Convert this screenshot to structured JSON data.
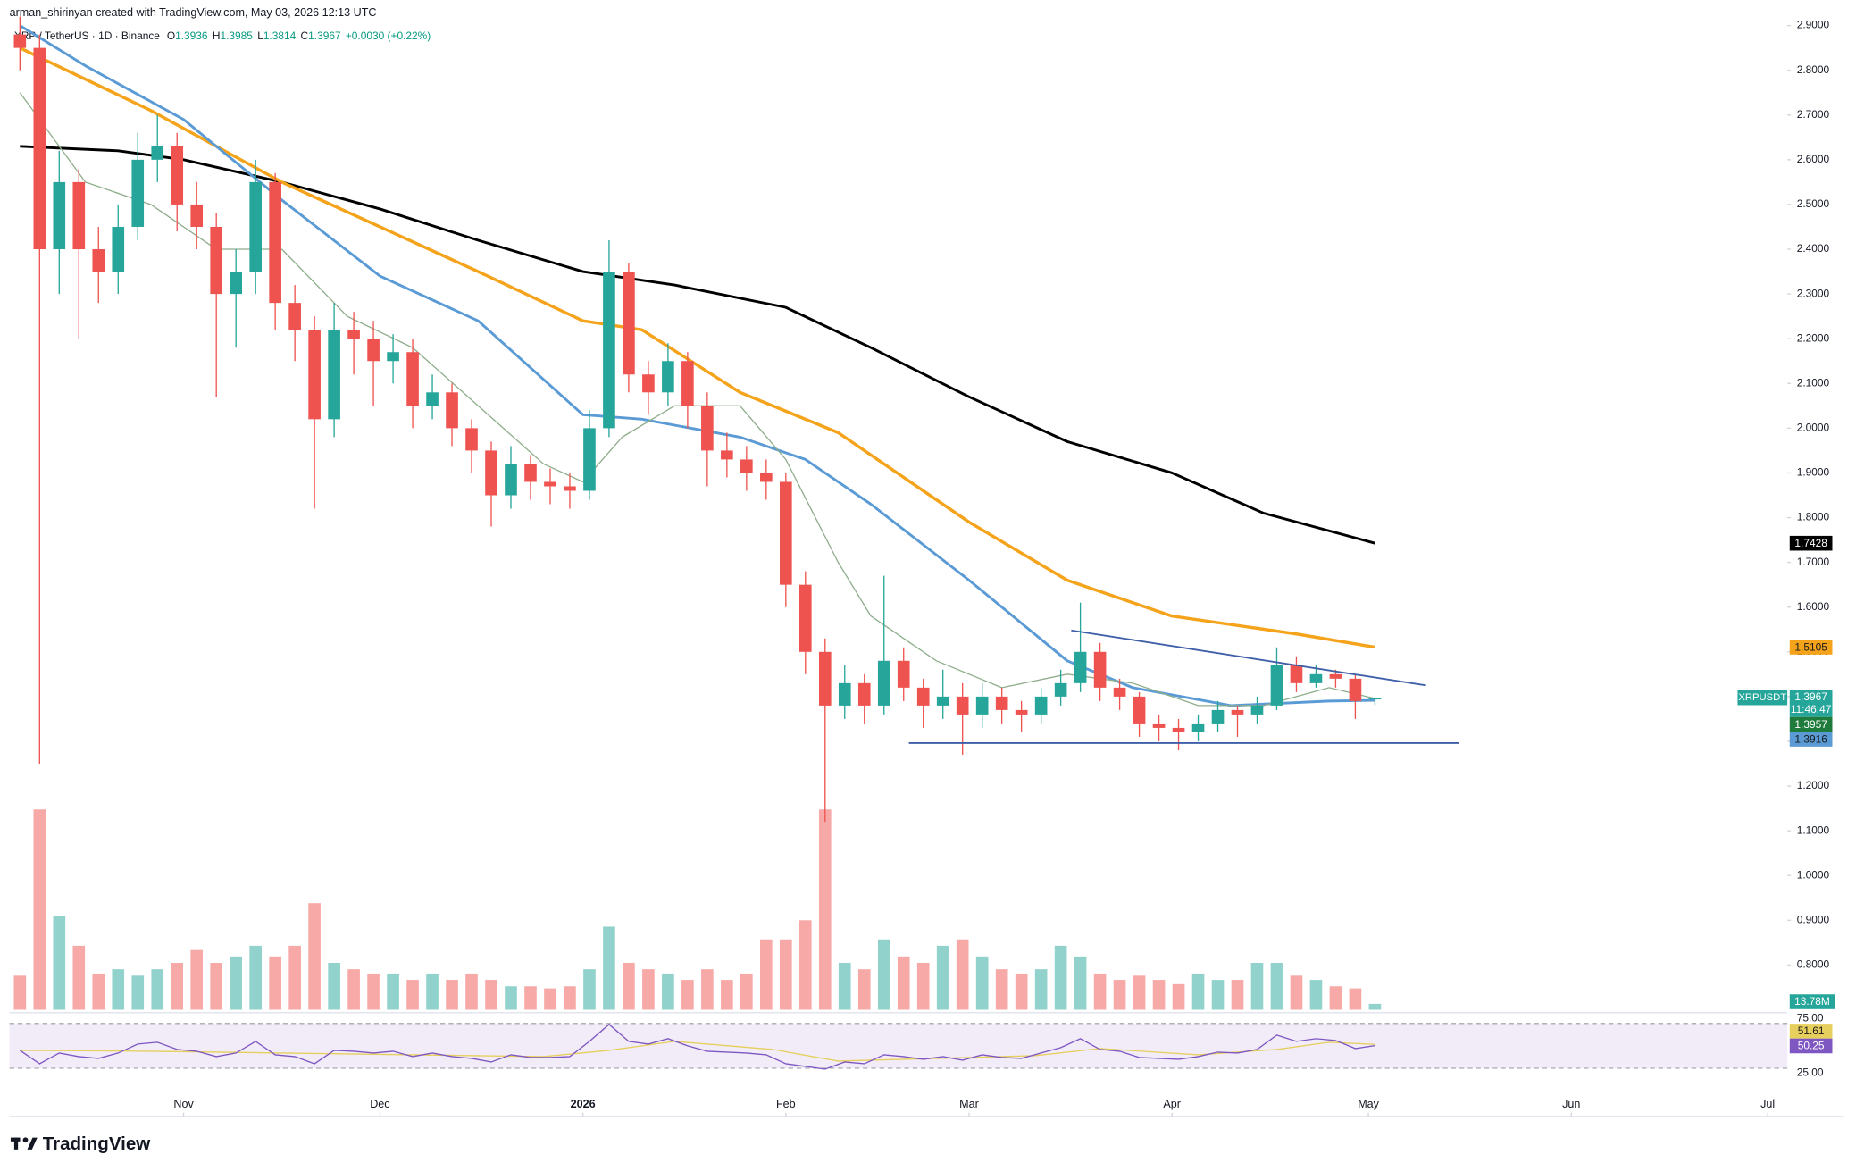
{
  "chart_data": {
    "type": "candlestick",
    "header": "arman_shirinyan created with TradingView.com, May 03, 2026 12:13 UTC",
    "symbol_line": "XRP / TetherUS · 1D · Binance",
    "legend": {
      "labels": [
        "O",
        "H",
        "L",
        "C"
      ],
      "change": "+0.0030 (+0.22%)",
      "color": "#089981"
    },
    "logo_text": "TradingView",
    "up_color": "#26a69a",
    "down_color": "#ef5350",
    "x": [
      0,
      3,
      6,
      9,
      12,
      15,
      18,
      21,
      24,
      27,
      30,
      33,
      36,
      39,
      42,
      45,
      48,
      51,
      54,
      57,
      60,
      63,
      66,
      69,
      72,
      75,
      78,
      81,
      84,
      87,
      90,
      93,
      96,
      99,
      102,
      105,
      108,
      111,
      114,
      117,
      120,
      123,
      126,
      129,
      132,
      135,
      138,
      141,
      144,
      147,
      150,
      153,
      156,
      159,
      162,
      165,
      168,
      171,
      174,
      177,
      180,
      183,
      186,
      189,
      192,
      195,
      198,
      201,
      204,
      207
    ],
    "open": [
      2.88,
      2.85,
      2.4,
      2.55,
      2.4,
      2.35,
      2.45,
      2.6,
      2.63,
      2.5,
      2.45,
      2.3,
      2.35,
      2.55,
      2.28,
      2.22,
      2.02,
      2.22,
      2.2,
      2.15,
      2.17,
      2.05,
      2.08,
      2.0,
      1.95,
      1.85,
      1.92,
      1.88,
      1.87,
      1.86,
      2.0,
      2.35,
      2.12,
      2.08,
      2.15,
      2.05,
      1.95,
      1.93,
      1.9,
      1.88,
      1.65,
      1.5,
      1.38,
      1.43,
      1.38,
      1.48,
      1.42,
      1.38,
      1.4,
      1.36,
      1.4,
      1.37,
      1.36,
      1.4,
      1.43,
      1.5,
      1.42,
      1.4,
      1.34,
      1.33,
      1.32,
      1.34,
      1.37,
      1.36,
      1.38,
      1.47,
      1.43,
      1.45,
      1.44,
      1.3936
    ],
    "high": [
      2.92,
      2.88,
      2.62,
      2.58,
      2.45,
      2.5,
      2.66,
      2.7,
      2.66,
      2.55,
      2.48,
      2.4,
      2.6,
      2.57,
      2.32,
      2.25,
      2.28,
      2.26,
      2.24,
      2.21,
      2.2,
      2.12,
      2.1,
      2.02,
      1.97,
      1.96,
      1.94,
      1.91,
      1.9,
      2.04,
      2.42,
      2.37,
      2.15,
      2.19,
      2.17,
      2.08,
      1.99,
      1.96,
      1.93,
      1.9,
      1.68,
      1.53,
      1.47,
      1.45,
      1.67,
      1.51,
      1.44,
      1.46,
      1.43,
      1.43,
      1.42,
      1.39,
      1.42,
      1.46,
      1.61,
      1.52,
      1.44,
      1.41,
      1.36,
      1.35,
      1.36,
      1.39,
      1.38,
      1.4,
      1.51,
      1.49,
      1.47,
      1.46,
      1.45,
      1.3985
    ],
    "low": [
      2.8,
      1.25,
      2.3,
      2.2,
      2.28,
      2.3,
      2.42,
      2.55,
      2.44,
      2.4,
      2.07,
      2.18,
      2.3,
      2.22,
      2.15,
      1.82,
      1.98,
      2.12,
      2.05,
      2.1,
      2.0,
      2.02,
      1.96,
      1.9,
      1.78,
      1.82,
      1.84,
      1.83,
      1.82,
      1.84,
      1.98,
      2.08,
      2.03,
      2.05,
      2.0,
      1.87,
      1.89,
      1.86,
      1.84,
      1.6,
      1.45,
      1.12,
      1.35,
      1.34,
      1.36,
      1.39,
      1.33,
      1.35,
      1.27,
      1.33,
      1.34,
      1.32,
      1.34,
      1.38,
      1.41,
      1.39,
      1.37,
      1.31,
      1.3,
      1.28,
      1.3,
      1.32,
      1.31,
      1.34,
      1.37,
      1.41,
      1.42,
      1.42,
      1.35,
      1.3814
    ],
    "close": [
      2.85,
      2.4,
      2.55,
      2.4,
      2.35,
      2.45,
      2.6,
      2.63,
      2.5,
      2.45,
      2.3,
      2.35,
      2.55,
      2.28,
      2.22,
      2.02,
      2.22,
      2.2,
      2.15,
      2.17,
      2.05,
      2.08,
      2.0,
      1.95,
      1.85,
      1.92,
      1.88,
      1.87,
      1.86,
      2.0,
      2.35,
      2.12,
      2.08,
      2.15,
      2.05,
      1.95,
      1.93,
      1.9,
      1.88,
      1.65,
      1.5,
      1.38,
      1.43,
      1.38,
      1.48,
      1.42,
      1.38,
      1.4,
      1.36,
      1.4,
      1.37,
      1.36,
      1.4,
      1.43,
      1.5,
      1.42,
      1.4,
      1.34,
      1.33,
      1.32,
      1.34,
      1.37,
      1.36,
      1.38,
      1.47,
      1.43,
      1.45,
      1.44,
      1.39,
      1.3967
    ],
    "volume": [
      80,
      470,
      220,
      150,
      85,
      95,
      80,
      95,
      110,
      140,
      110,
      125,
      150,
      125,
      150,
      250,
      110,
      95,
      85,
      85,
      70,
      85,
      70,
      85,
      70,
      55,
      55,
      50,
      55,
      95,
      195,
      110,
      95,
      85,
      70,
      95,
      70,
      85,
      165,
      165,
      210,
      470,
      110,
      95,
      165,
      125,
      110,
      150,
      165,
      125,
      95,
      85,
      95,
      150,
      125,
      85,
      70,
      80,
      70,
      60,
      85,
      70,
      70,
      110,
      110,
      80,
      70,
      55,
      50,
      13.78
    ],
    "volume_last_label": "13.78M",
    "volume_lim": [
      0,
      500
    ],
    "xlim": [
      -1.6,
      270
    ],
    "xticks": [
      {
        "value": 25,
        "label": "Nov"
      },
      {
        "value": 55,
        "label": "Dec"
      },
      {
        "value": 86,
        "label": "2026"
      },
      {
        "value": 117,
        "label": "Feb"
      },
      {
        "value": 145,
        "label": "Mar"
      },
      {
        "value": 176,
        "label": "Apr"
      },
      {
        "value": 206,
        "label": "May"
      },
      {
        "value": 237,
        "label": "Jun"
      },
      {
        "value": 267,
        "label": "Jul"
      }
    ],
    "ylim": [
      0.7,
      2.92
    ],
    "yticks": [
      {
        "value": 0.8,
        "label": "0.8000"
      },
      {
        "value": 0.9,
        "label": "0.9000"
      },
      {
        "value": 1.0,
        "label": "1.0000"
      },
      {
        "value": 1.1,
        "label": "1.1000"
      },
      {
        "value": 1.2,
        "label": "1.2000"
      },
      {
        "value": 1.3,
        "label": "1.3000"
      },
      {
        "value": 1.4,
        "label": "1.4000"
      },
      {
        "value": 1.5,
        "label": "1.5000"
      },
      {
        "value": 1.6,
        "label": "1.6000"
      },
      {
        "value": 1.7,
        "label": "1.7000"
      },
      {
        "value": 1.8,
        "label": "1.8000"
      },
      {
        "value": 1.9,
        "label": "1.9000"
      },
      {
        "value": 2.0,
        "label": "2.0000"
      },
      {
        "value": 2.1,
        "label": "2.1000"
      },
      {
        "value": 2.2,
        "label": "2.2000"
      },
      {
        "value": 2.3,
        "label": "2.3000"
      },
      {
        "value": 2.4,
        "label": "2.4000"
      },
      {
        "value": 2.5,
        "label": "2.5000"
      },
      {
        "value": 2.6,
        "label": "2.6000"
      },
      {
        "value": 2.7,
        "label": "2.7000"
      },
      {
        "value": 2.8,
        "label": "2.8000"
      },
      {
        "value": 2.9,
        "label": "2.9000"
      }
    ],
    "moving_averages": [
      {
        "color": "#000000",
        "label_color": "#000000",
        "label_text_color": "#ffffff",
        "width": 2.2,
        "x": [
          0,
          15,
          25,
          40,
          55,
          70,
          86,
          100,
          117,
          130,
          145,
          160,
          176,
          190,
          207
        ],
        "values": [
          2.63,
          2.62,
          2.6,
          2.55,
          2.49,
          2.42,
          2.35,
          2.32,
          2.27,
          2.18,
          2.07,
          1.97,
          1.9,
          1.81,
          1.7428
        ]
      },
      {
        "color": "#f5a31a",
        "label_color": "#f5a31a",
        "label_text_color": "#1a1a1a",
        "width": 2.6,
        "x": [
          0,
          20,
          40,
          55,
          70,
          86,
          95,
          110,
          125,
          145,
          160,
          176,
          195,
          207
        ],
        "values": [
          2.85,
          2.71,
          2.55,
          2.45,
          2.35,
          2.24,
          2.22,
          2.08,
          1.99,
          1.79,
          1.66,
          1.58,
          1.54,
          1.5105
        ]
      },
      {
        "color": "#5b9bd5",
        "label_color": "#5b9bd5",
        "label_text_color": "#1a1a1a",
        "width": 2.2,
        "x": [
          0,
          10,
          25,
          40,
          55,
          70,
          86,
          95,
          110,
          120,
          130,
          145,
          160,
          170,
          185,
          200,
          207
        ],
        "values": [
          2.9,
          2.81,
          2.69,
          2.51,
          2.34,
          2.24,
          2.03,
          2.02,
          1.98,
          1.93,
          1.83,
          1.66,
          1.48,
          1.42,
          1.38,
          1.39,
          1.3916
        ]
      },
      {
        "color": "#8fae8c",
        "label_color": "#1e7b3c",
        "label_text_color": "#ffffff",
        "width": 1,
        "x": [
          0,
          10,
          20,
          30,
          40,
          50,
          60,
          70,
          80,
          86,
          92,
          100,
          110,
          117,
          125,
          130,
          140,
          150,
          160,
          170,
          180,
          190,
          200,
          207
        ],
        "values": [
          2.75,
          2.55,
          2.5,
          2.4,
          2.4,
          2.25,
          2.18,
          2.05,
          1.92,
          1.88,
          1.98,
          2.05,
          2.05,
          1.93,
          1.7,
          1.58,
          1.48,
          1.42,
          1.45,
          1.43,
          1.38,
          1.38,
          1.42,
          1.3957
        ]
      }
    ],
    "trendlines": [
      {
        "color": "#3f5fa8",
        "x": [
          160.6,
          214.8
        ],
        "values": [
          1.548,
          1.425
        ]
      },
      {
        "color": "#3f5fa8",
        "x": [
          135.8,
          219.9
        ],
        "values": [
          1.296,
          1.296
        ]
      }
    ],
    "symbol_tag": "XRPUSDT",
    "countdown": "11:46:47",
    "rsi": {
      "color": "#7e57c2",
      "band_color": "#ede7f6",
      "x": [
        0,
        3,
        6,
        9,
        12,
        15,
        18,
        21,
        24,
        27,
        30,
        33,
        36,
        39,
        42,
        45,
        48,
        51,
        54,
        57,
        60,
        63,
        66,
        69,
        72,
        75,
        78,
        81,
        84,
        87,
        90,
        93,
        96,
        99,
        102,
        105,
        108,
        111,
        114,
        117,
        120,
        123,
        126,
        129,
        132,
        135,
        138,
        141,
        144,
        147,
        150,
        153,
        156,
        159,
        162,
        165,
        168,
        171,
        174,
        177,
        180,
        183,
        186,
        189,
        192,
        195,
        198,
        201,
        204,
        207
      ],
      "values": [
        45,
        30,
        42,
        38,
        36,
        42,
        52,
        54,
        46,
        44,
        38,
        42,
        55,
        40,
        38,
        30,
        45,
        44,
        42,
        44,
        38,
        42,
        38,
        36,
        32,
        40,
        37,
        37,
        38,
        55,
        74,
        55,
        52,
        58,
        50,
        44,
        43,
        42,
        40,
        30,
        27,
        24,
        32,
        30,
        40,
        38,
        35,
        38,
        34,
        40,
        37,
        36,
        42,
        48,
        58,
        46,
        44,
        37,
        36,
        35,
        38,
        43,
        42,
        46,
        62,
        55,
        58,
        56,
        47,
        50.25
      ],
      "ma": {
        "color": "#e6cf5c",
        "x": [
          0,
          20,
          40,
          60,
          80,
          90,
          100,
          115,
          125,
          140,
          155,
          165,
          180,
          192,
          200,
          207
        ],
        "values": [
          45,
          44,
          42,
          40,
          38,
          45,
          55,
          46,
          33,
          36,
          39,
          47,
          40,
          46,
          54,
          51.61
        ]
      },
      "lim": [
        15,
        85
      ],
      "ticks": [
        {
          "value": 75,
          "label": "75.00"
        },
        {
          "value": 25,
          "label": "25.00"
        }
      ]
    }
  }
}
